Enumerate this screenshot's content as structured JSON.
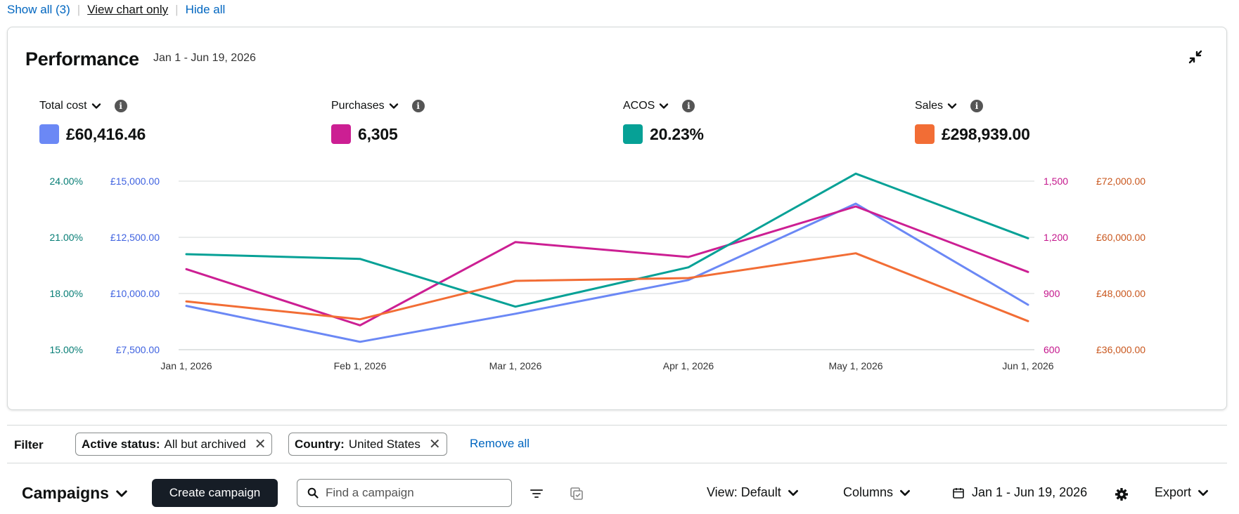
{
  "top_links": {
    "show_all": "Show all (3)",
    "view_chart_only": "View chart only",
    "hide_all": "Hide all"
  },
  "performance": {
    "title": "Performance",
    "date_range": "Jan 1 - Jun 19, 2026",
    "icons": {
      "collapse": "collapse-icon",
      "info": "info-icon",
      "chevron": "chevron-down-icon"
    }
  },
  "metrics": [
    {
      "label": "Total cost",
      "value": "£60,416.46",
      "color": "#6b88f5"
    },
    {
      "label": "Purchases",
      "value": "6,305",
      "color": "#cc1f93"
    },
    {
      "label": "ACOS",
      "value": "20.23%",
      "color": "#06a196"
    },
    {
      "label": "Sales",
      "value": "£298,939.00",
      "color": "#f26d35"
    }
  ],
  "chart_data": {
    "type": "line",
    "x": [
      "Jan 1, 2026",
      "Feb 1, 2026",
      "Mar 1, 2026",
      "Apr 1, 2026",
      "May 1, 2026",
      "Jun 1, 2026"
    ],
    "axes": {
      "acos": {
        "ticks": [
          "24.00%",
          "21.00%",
          "18.00%",
          "15.00%"
        ],
        "range": [
          15,
          24
        ],
        "color": "#067d75"
      },
      "total_cost": {
        "ticks": [
          "£15,000.00",
          "£12,500.00",
          "£10,000.00",
          "£7,500.00"
        ],
        "range": [
          7500,
          15000
        ],
        "color": "#3f62e0"
      },
      "purchases": {
        "ticks": [
          "1,500",
          "1,200",
          "900",
          "600"
        ],
        "range": [
          600,
          1500
        ],
        "color": "#c4168c"
      },
      "sales": {
        "ticks": [
          "£72,000.00",
          "£60,000.00",
          "£48,000.00",
          "£36,000.00"
        ],
        "range": [
          36000,
          72000
        ],
        "color": "#c9571e"
      }
    },
    "series": [
      {
        "name": "Total cost",
        "axis": "total_cost",
        "color": "#6b88f5",
        "values": [
          9450,
          7850,
          9100,
          10600,
          14000,
          9500
        ]
      },
      {
        "name": "Purchases",
        "axis": "purchases",
        "color": "#cc1f93",
        "values": [
          1030,
          730,
          1175,
          1095,
          1365,
          1015
        ]
      },
      {
        "name": "ACOS",
        "axis": "acos",
        "color": "#06a196",
        "values": [
          20.1,
          19.85,
          17.3,
          19.4,
          24.4,
          20.95
        ]
      },
      {
        "name": "Sales",
        "axis": "sales",
        "color": "#f26d35",
        "values": [
          46300,
          42500,
          50700,
          51300,
          56600,
          42100
        ]
      }
    ],
    "grid": true,
    "legend": "top"
  },
  "filter": {
    "label": "Filter",
    "chips": [
      {
        "key": "Active status:",
        "value": "All but archived"
      },
      {
        "key": "Country:",
        "value": "United States"
      }
    ],
    "remove_all": "Remove all"
  },
  "campaigns": {
    "title": "Campaigns",
    "create_button": "Create campaign",
    "search_placeholder": "Find a campaign",
    "view": "View: Default",
    "columns": "Columns",
    "date_range": "Jan 1 - Jun 19, 2026",
    "export": "Export",
    "icons": {
      "search": "search-icon",
      "filter": "filter-lines-icon",
      "copy": "copy-icon",
      "calendar": "calendar-icon",
      "settings": "gear-icon"
    }
  }
}
